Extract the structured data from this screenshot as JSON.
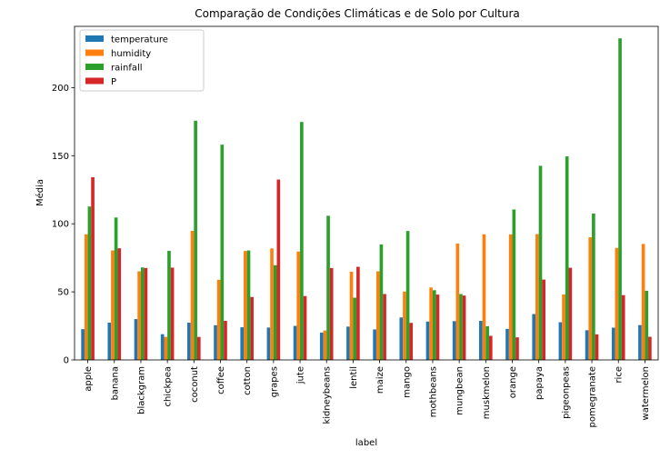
{
  "chart_data": {
    "type": "bar",
    "title": "Comparação de Condições Climáticas e de Solo por Cultura",
    "xlabel": "label",
    "ylabel": "Média",
    "ylim": [
      0,
      245
    ],
    "yticks": [
      0,
      50,
      100,
      150,
      200
    ],
    "grid": false,
    "legend_position": "top-left",
    "categories": [
      "apple",
      "banana",
      "blackgram",
      "chickpea",
      "coconut",
      "coffee",
      "cotton",
      "grapes",
      "jute",
      "kidneybeans",
      "lentil",
      "maize",
      "mango",
      "mothbeans",
      "mungbean",
      "muskmelon",
      "orange",
      "papaya",
      "pigeonpeas",
      "pomegranate",
      "rice",
      "watermelon"
    ],
    "series": [
      {
        "name": "temperature",
        "color": "#1f77b4",
        "values": [
          22.6,
          27.4,
          30.0,
          18.9,
          27.4,
          25.5,
          24.0,
          23.8,
          25.0,
          20.1,
          24.5,
          22.4,
          31.2,
          28.2,
          28.5,
          28.7,
          22.8,
          33.7,
          27.7,
          21.8,
          23.7,
          25.6
        ]
      },
      {
        "name": "humidity",
        "color": "#ff7f0e",
        "values": [
          92.3,
          80.4,
          65.1,
          16.9,
          94.8,
          58.9,
          80.0,
          81.9,
          79.6,
          21.6,
          64.8,
          65.1,
          50.2,
          53.2,
          85.5,
          92.3,
          92.2,
          92.4,
          48.1,
          90.1,
          82.3,
          85.2
        ]
      },
      {
        "name": "rainfall",
        "color": "#2ca02c",
        "values": [
          112.7,
          104.6,
          67.9,
          80.1,
          175.7,
          158.1,
          80.4,
          69.6,
          174.8,
          105.9,
          45.7,
          84.8,
          94.7,
          51.2,
          48.4,
          24.7,
          110.5,
          142.6,
          149.5,
          107.5,
          236.2,
          50.8
        ]
      },
      {
        "name": "P",
        "color": "#d62728",
        "values": [
          134.2,
          82.0,
          67.5,
          67.8,
          16.9,
          28.7,
          46.2,
          132.5,
          46.9,
          67.5,
          68.4,
          48.4,
          27.2,
          48.0,
          47.3,
          17.7,
          16.6,
          59.0,
          67.7,
          18.8,
          47.6,
          17.0
        ]
      }
    ]
  }
}
